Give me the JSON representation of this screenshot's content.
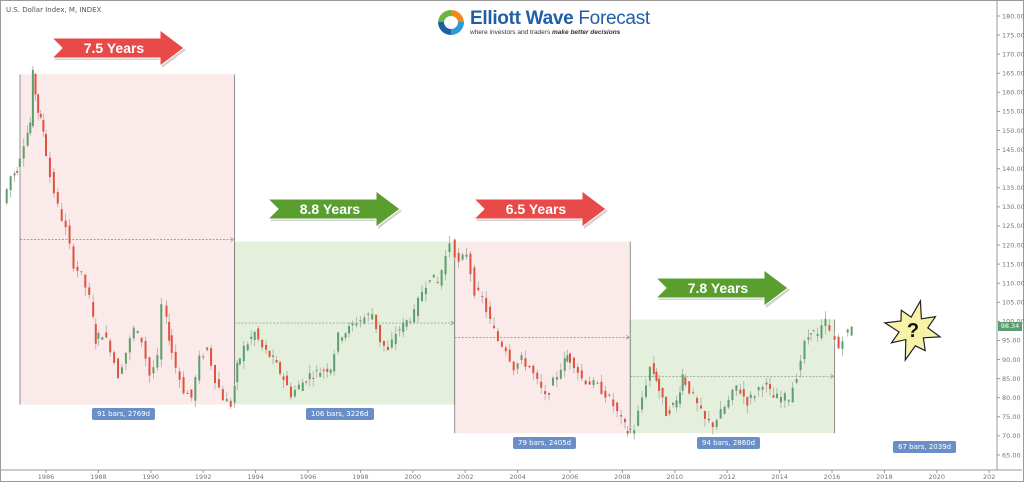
{
  "chart_title": "U.S. Dollar Index, M, INDEX",
  "logo": {
    "brand_bold": "Elliott Wave",
    "brand_thin": " Forecast",
    "tagline_plain": "where investors and traders ",
    "tagline_bold": "make better decisions"
  },
  "current_price": "98.34",
  "question_mark": "?",
  "chart_data": {
    "type": "candlestick",
    "title": "U.S. Dollar Index, M, INDEX",
    "xlabel": "",
    "ylabel": "",
    "ylim": [
      62,
      182
    ],
    "xlim": [
      1984.5,
      2021.5
    ],
    "grid": false,
    "y_ticks": [
      "180.00",
      "175.00",
      "170.00",
      "165.00",
      "160.00",
      "155.00",
      "150.00",
      "145.00",
      "140.00",
      "135.00",
      "130.00",
      "125.00",
      "120.00",
      "115.00",
      "110.00",
      "105.00",
      "100.00",
      "95.00",
      "90.00",
      "85.00",
      "80.00",
      "75.00",
      "70.00",
      "65.00"
    ],
    "x_ticks": [
      "1986",
      "1988",
      "1990",
      "1992",
      "1994",
      "1996",
      "1998",
      "2000",
      "2002",
      "2004",
      "2006",
      "2008",
      "2010",
      "2012",
      "2014",
      "2016",
      "2018",
      "2020",
      "202"
    ],
    "price_path": [
      [
        1984.5,
        131
      ],
      [
        1984.8,
        138
      ],
      [
        1985.0,
        140
      ],
      [
        1985.3,
        147
      ],
      [
        1985.5,
        152
      ],
      [
        1985.6,
        164.7
      ],
      [
        1985.8,
        155
      ],
      [
        1986.0,
        150
      ],
      [
        1986.3,
        138
      ],
      [
        1986.6,
        130
      ],
      [
        1986.9,
        124
      ],
      [
        1987.2,
        115
      ],
      [
        1987.5,
        112
      ],
      [
        1987.8,
        106
      ],
      [
        1988.0,
        95
      ],
      [
        1988.3,
        97
      ],
      [
        1988.6,
        93
      ],
      [
        1988.9,
        86
      ],
      [
        1989.2,
        92
      ],
      [
        1989.5,
        98
      ],
      [
        1989.8,
        95
      ],
      [
        1990.1,
        86
      ],
      [
        1990.4,
        90
      ],
      [
        1990.6,
        104
      ],
      [
        1990.8,
        96
      ],
      [
        1991.1,
        88
      ],
      [
        1991.4,
        82
      ],
      [
        1991.7,
        80
      ],
      [
        1992.0,
        90
      ],
      [
        1992.3,
        93
      ],
      [
        1992.6,
        85
      ],
      [
        1992.9,
        80
      ],
      [
        1993.2,
        78.2
      ],
      [
        1993.4,
        88
      ],
      [
        1993.7,
        93
      ],
      [
        1994.1,
        97
      ],
      [
        1994.4,
        93
      ],
      [
        1994.8,
        90
      ],
      [
        1995.2,
        85
      ],
      [
        1995.5,
        81
      ],
      [
        1995.8,
        83
      ],
      [
        1996.2,
        86
      ],
      [
        1996.6,
        87
      ],
      [
        1997.0,
        88
      ],
      [
        1997.3,
        96
      ],
      [
        1997.7,
        98
      ],
      [
        1998.0,
        100
      ],
      [
        1998.3,
        101
      ],
      [
        1998.6,
        102
      ],
      [
        1998.9,
        95
      ],
      [
        1999.2,
        92
      ],
      [
        1999.5,
        97
      ],
      [
        1999.9,
        100
      ],
      [
        2000.2,
        102
      ],
      [
        2000.5,
        108
      ],
      [
        2000.8,
        112
      ],
      [
        2001.1,
        110
      ],
      [
        2001.4,
        117
      ],
      [
        2001.6,
        120.9
      ],
      [
        2001.9,
        115
      ],
      [
        2002.2,
        118
      ],
      [
        2002.5,
        108
      ],
      [
        2002.8,
        106
      ],
      [
        2003.1,
        100
      ],
      [
        2003.4,
        95
      ],
      [
        2003.7,
        93
      ],
      [
        2004.0,
        88
      ],
      [
        2004.3,
        90
      ],
      [
        2004.6,
        88
      ],
      [
        2004.9,
        84
      ],
      [
        2005.2,
        80
      ],
      [
        2005.5,
        84
      ],
      [
        2005.8,
        88
      ],
      [
        2006.0,
        91
      ],
      [
        2006.3,
        89
      ],
      [
        2006.6,
        85
      ],
      [
        2006.9,
        84
      ],
      [
        2007.2,
        83
      ],
      [
        2007.5,
        81
      ],
      [
        2007.8,
        78
      ],
      [
        2008.1,
        74
      ],
      [
        2008.3,
        71
      ],
      [
        2008.6,
        72
      ],
      [
        2008.9,
        80
      ],
      [
        2009.2,
        88
      ],
      [
        2009.4,
        85
      ],
      [
        2009.8,
        76
      ],
      [
        2010.2,
        79
      ],
      [
        2010.4,
        86
      ],
      [
        2010.7,
        82
      ],
      [
        2011.0,
        78
      ],
      [
        2011.3,
        74
      ],
      [
        2011.6,
        73
      ],
      [
        2011.9,
        76
      ],
      [
        2012.2,
        79
      ],
      [
        2012.5,
        83
      ],
      [
        2012.9,
        79
      ],
      [
        2013.2,
        81
      ],
      [
        2013.5,
        84
      ],
      [
        2013.9,
        80
      ],
      [
        2014.2,
        80
      ],
      [
        2014.5,
        80
      ],
      [
        2014.8,
        86
      ],
      [
        2015.1,
        94
      ],
      [
        2015.3,
        98
      ],
      [
        2015.6,
        96
      ],
      [
        2015.9,
        100
      ],
      [
        2016.1,
        97
      ],
      [
        2016.4,
        93
      ],
      [
        2016.6,
        96
      ],
      [
        2016.9,
        98.34
      ]
    ],
    "annotations": [
      {
        "label": "7.5 Years",
        "color": "#e84a4a",
        "start_year": 1985.6,
        "end_year": 1993.2,
        "high": 164.7,
        "low": 78.2,
        "stats": "91 bars, 2769d",
        "type": "decline"
      },
      {
        "label": "8.8 Years",
        "color": "#5a9e2f",
        "start_year": 1993.2,
        "end_year": 2001.6,
        "high": 120.9,
        "low": 78.2,
        "stats": "106 bars, 3226d",
        "type": "rally"
      },
      {
        "label": "6.5 Years",
        "color": "#e84a4a",
        "start_year": 2001.6,
        "end_year": 2008.3,
        "high": 120.9,
        "low": 70.7,
        "stats": "79 bars, 2405d",
        "type": "decline"
      },
      {
        "label": "7.8 Years",
        "color": "#5a9e2f",
        "start_year": 2008.3,
        "end_year": 2016.1,
        "high": 100.5,
        "low": 70.7,
        "stats": "94 bars, 2860d",
        "type": "rally"
      },
      {
        "label": "?",
        "stats": "67 bars, 2039d",
        "type": "projection"
      }
    ],
    "last_price": 98.34
  },
  "colors": {
    "red_zone": "#fbeaea",
    "green_zone": "#e4f0dc",
    "red_arrow": "#e84a4a",
    "green_arrow": "#5a9e2f",
    "bull_candle": "#5b9e6f",
    "bear_candle": "#e0513e",
    "badge": "#6a8fc8",
    "star": "#f7f2a8"
  }
}
